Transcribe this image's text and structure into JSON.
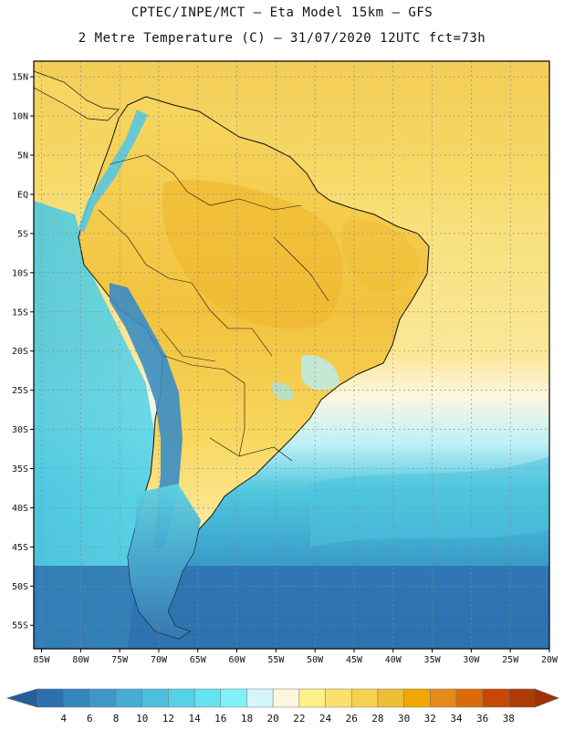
{
  "header": {
    "line1": "CPTEC/INPE/MCT –  Eta Model 15km – GFS",
    "line2": "2 Metre Temperature (C) – 31/07/2020 12UTC fct=73h"
  },
  "map": {
    "lon_range": [
      -86,
      -20
    ],
    "lat_range": [
      -58,
      17
    ],
    "lat_ticks": [
      {
        "value": 15,
        "label": "15N"
      },
      {
        "value": 10,
        "label": "10N"
      },
      {
        "value": 5,
        "label": "5N"
      },
      {
        "value": 0,
        "label": "EQ"
      },
      {
        "value": -5,
        "label": "5S"
      },
      {
        "value": -10,
        "label": "10S"
      },
      {
        "value": -15,
        "label": "15S"
      },
      {
        "value": -20,
        "label": "20S"
      },
      {
        "value": -25,
        "label": "25S"
      },
      {
        "value": -30,
        "label": "30S"
      },
      {
        "value": -35,
        "label": "35S"
      },
      {
        "value": -40,
        "label": "40S"
      },
      {
        "value": -45,
        "label": "45S"
      },
      {
        "value": -50,
        "label": "50S"
      },
      {
        "value": -55,
        "label": "55S"
      }
    ],
    "lon_ticks": [
      {
        "value": -85,
        "label": "85W"
      },
      {
        "value": -80,
        "label": "80W"
      },
      {
        "value": -75,
        "label": "75W"
      },
      {
        "value": -70,
        "label": "70W"
      },
      {
        "value": -65,
        "label": "65W"
      },
      {
        "value": -60,
        "label": "60W"
      },
      {
        "value": -55,
        "label": "55W"
      },
      {
        "value": -50,
        "label": "50W"
      },
      {
        "value": -45,
        "label": "45W"
      },
      {
        "value": -40,
        "label": "40W"
      },
      {
        "value": -35,
        "label": "35W"
      },
      {
        "value": -30,
        "label": "30W"
      },
      {
        "value": -25,
        "label": "25W"
      },
      {
        "value": -20,
        "label": "20W"
      }
    ]
  },
  "colorbar": {
    "labels": [
      "4",
      "6",
      "8",
      "10",
      "12",
      "14",
      "16",
      "18",
      "20",
      "22",
      "24",
      "26",
      "28",
      "30",
      "32",
      "34",
      "36",
      "38"
    ],
    "colors": [
      "#2c6fae",
      "#3585bd",
      "#3d98c9",
      "#45add4",
      "#4dbfdc",
      "#56d2e6",
      "#63e2ef",
      "#7ef2f7",
      "#d4f6fb",
      "#fdf6df",
      "#fef08a",
      "#fbe06d",
      "#f4d24f",
      "#edbf36",
      "#f0a800",
      "#e58a18",
      "#dc6a08",
      "#c84705",
      "#b03a05"
    ],
    "low_arrow_color": "#235f99",
    "high_arrow_color": "#a33002"
  }
}
